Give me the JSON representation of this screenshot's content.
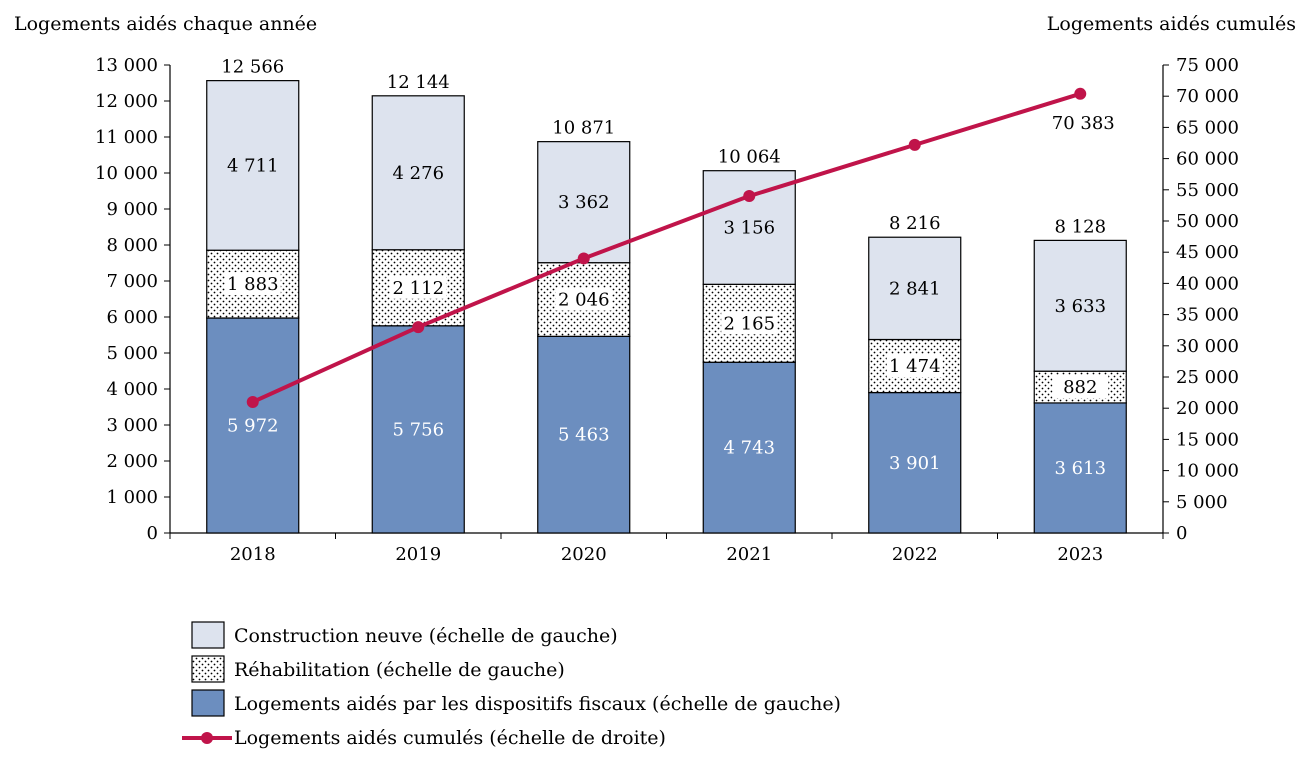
{
  "chart_data": {
    "type": "bar",
    "stacked": true,
    "left_axis_title": "Logements aidés chaque année",
    "right_axis_title": "Logements aidés cumulés",
    "categories": [
      "2018",
      "2019",
      "2020",
      "2021",
      "2022",
      "2023"
    ],
    "y_left": {
      "range": [
        0,
        13000
      ],
      "ticks": [
        "0",
        "1 000",
        "2 000",
        "3 000",
        "4 000",
        "5 000",
        "6 000",
        "7 000",
        "8 000",
        "9 000",
        "10 000",
        "11 000",
        "12 000",
        "13 000"
      ]
    },
    "y_right": {
      "range": [
        0,
        75000
      ],
      "ticks": [
        "0",
        "5 000",
        "10 000",
        "15 000",
        "20 000",
        "25 000",
        "30 000",
        "35 000",
        "40 000",
        "45 000",
        "50 000",
        "55 000",
        "60 000",
        "65 000",
        "70 000",
        "75 000"
      ]
    },
    "series": [
      {
        "name": "Logements aidés par les dispositifs fiscaux (échelle de gauche)",
        "kind": "bar",
        "color": "#6c8ebf",
        "values": [
          5972,
          5756,
          5463,
          4743,
          3901,
          3613
        ],
        "labels": [
          "5 972",
          "5 756",
          "5 463",
          "4 743",
          "3 901",
          "3 613"
        ]
      },
      {
        "name": "Réhabilitation (échelle de gauche)",
        "kind": "bar",
        "pattern": "dotted",
        "values": [
          1883,
          2112,
          2046,
          2165,
          1474,
          882
        ],
        "labels": [
          "1 883",
          "2 112",
          "2 046",
          "2 165",
          "1 474",
          "882"
        ]
      },
      {
        "name": "Construction neuve (échelle de gauche)",
        "kind": "bar",
        "color": "#dde3ee",
        "values": [
          4711,
          4276,
          3362,
          3156,
          2841,
          3633
        ],
        "labels": [
          "4 711",
          "4 276",
          "3 362",
          "3 156",
          "2 841",
          "3 633"
        ]
      },
      {
        "name": "Logements aidés cumulés (échelle de droite)",
        "kind": "line",
        "axis": "right",
        "color": "#c0144a",
        "values": [
          21000,
          33000,
          44000,
          54000,
          62200,
          70383
        ],
        "labels": [
          "",
          "",
          "",
          "",
          "",
          "70 383"
        ]
      }
    ],
    "totals": [
      12566,
      12144,
      10871,
      10064,
      8216,
      8128
    ],
    "total_labels": [
      "12 566",
      "12 144",
      "10 871",
      "10 064",
      "8 216",
      "8 128"
    ],
    "legend": {
      "position": "bottom-left",
      "items": [
        "Construction neuve (échelle de gauche)",
        "Réhabilitation (échelle de gauche)",
        "Logements aidés par les dispositifs fiscaux (échelle de gauche)",
        "Logements aidés cumulés (échelle de droite)"
      ]
    },
    "grid": false
  }
}
